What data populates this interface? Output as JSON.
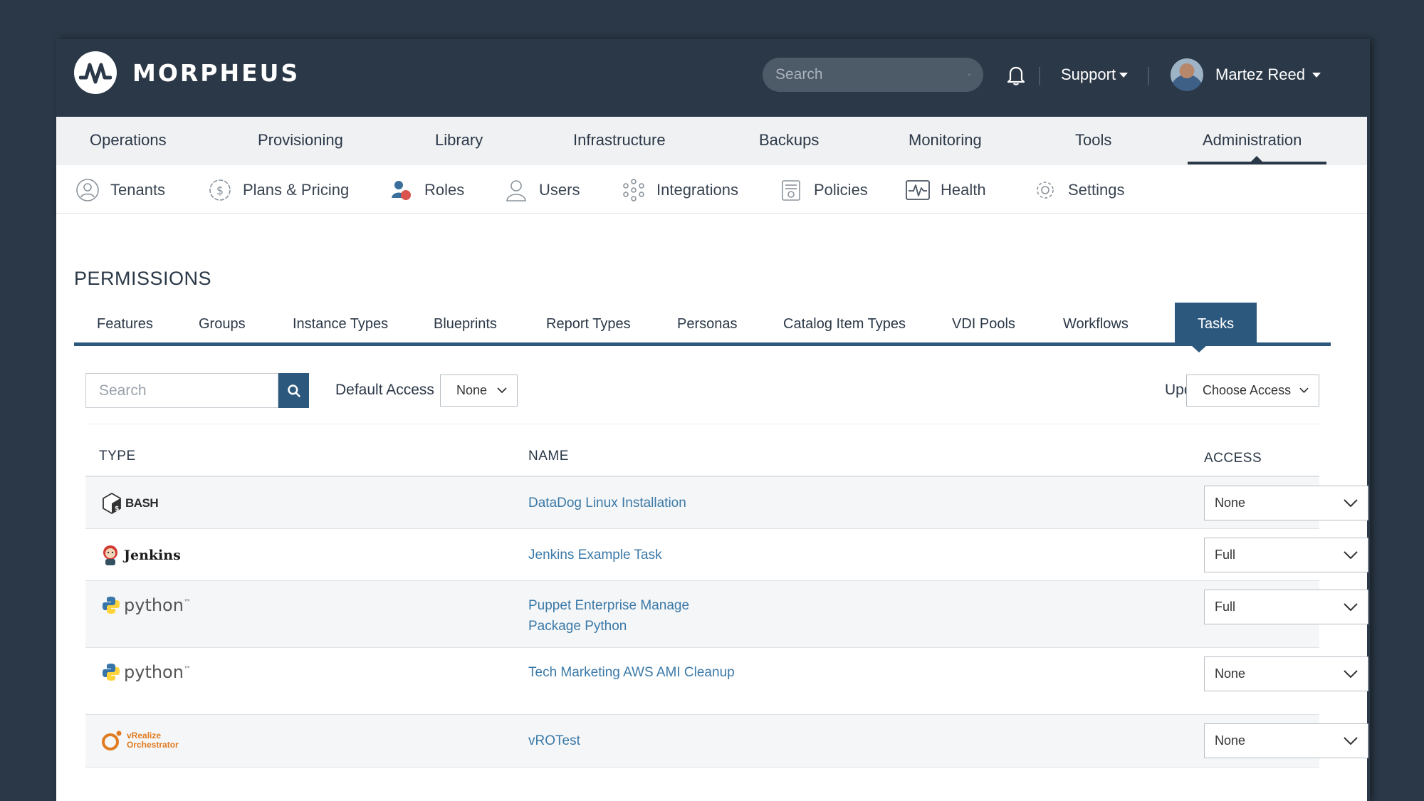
{
  "app": {
    "brand": "MORPHEUS",
    "accent": "#2d587e",
    "header_bg": "#2b3847"
  },
  "header": {
    "search_placeholder": "Search",
    "support_label": "Support",
    "user_name": "Martez Reed"
  },
  "main_nav": [
    {
      "label": "Operations"
    },
    {
      "label": "Provisioning"
    },
    {
      "label": "Library"
    },
    {
      "label": "Infrastructure"
    },
    {
      "label": "Backups"
    },
    {
      "label": "Monitoring"
    },
    {
      "label": "Tools"
    },
    {
      "label": "Administration",
      "active": true
    }
  ],
  "sub_nav": [
    {
      "label": "Tenants",
      "icon": "tenants-icon"
    },
    {
      "label": "Plans & Pricing",
      "icon": "dollar-icon"
    },
    {
      "label": "Roles",
      "icon": "roles-icon",
      "active": true
    },
    {
      "label": "Users",
      "icon": "user-icon"
    },
    {
      "label": "Integrations",
      "icon": "integrations-icon"
    },
    {
      "label": "Policies",
      "icon": "policies-icon"
    },
    {
      "label": "Health",
      "icon": "health-icon"
    },
    {
      "label": "Settings",
      "icon": "gear-icon"
    }
  ],
  "permissions": {
    "title": "PERMISSIONS",
    "tabs": [
      {
        "label": "Features"
      },
      {
        "label": "Groups"
      },
      {
        "label": "Instance Types"
      },
      {
        "label": "Blueprints"
      },
      {
        "label": "Report Types"
      },
      {
        "label": "Personas"
      },
      {
        "label": "Catalog Item Types"
      },
      {
        "label": "VDI Pools"
      },
      {
        "label": "Workflows"
      },
      {
        "label": "Tasks",
        "active": true
      }
    ],
    "filter": {
      "search_placeholder": "Search",
      "default_access_label": "Default Access",
      "default_access_value": "None",
      "update_all_label": "Update All",
      "update_all_value": "Choose Access"
    },
    "table": {
      "headers": {
        "type": "TYPE",
        "name": "NAME",
        "access": "ACCESS"
      },
      "rows": [
        {
          "type": "BASH",
          "type_icon": "bash-icon",
          "name": "DataDog Linux Installation",
          "access": "None"
        },
        {
          "type": "Jenkins",
          "type_icon": "jenkins-icon",
          "name": "Jenkins Example Task",
          "access": "Full"
        },
        {
          "type": "python",
          "type_icon": "python-icon",
          "name": "Puppet Enterprise Manage Package Python",
          "access": "Full"
        },
        {
          "type": "python",
          "type_icon": "python-icon",
          "name": "Tech Marketing AWS AMI Cleanup",
          "access": "None"
        },
        {
          "type": "vRealize Orchestrator",
          "type_line1": "vRealize",
          "type_line2": "Orchestrator",
          "type_icon": "vro-icon",
          "name": "vROTest",
          "access": "None"
        }
      ]
    }
  }
}
